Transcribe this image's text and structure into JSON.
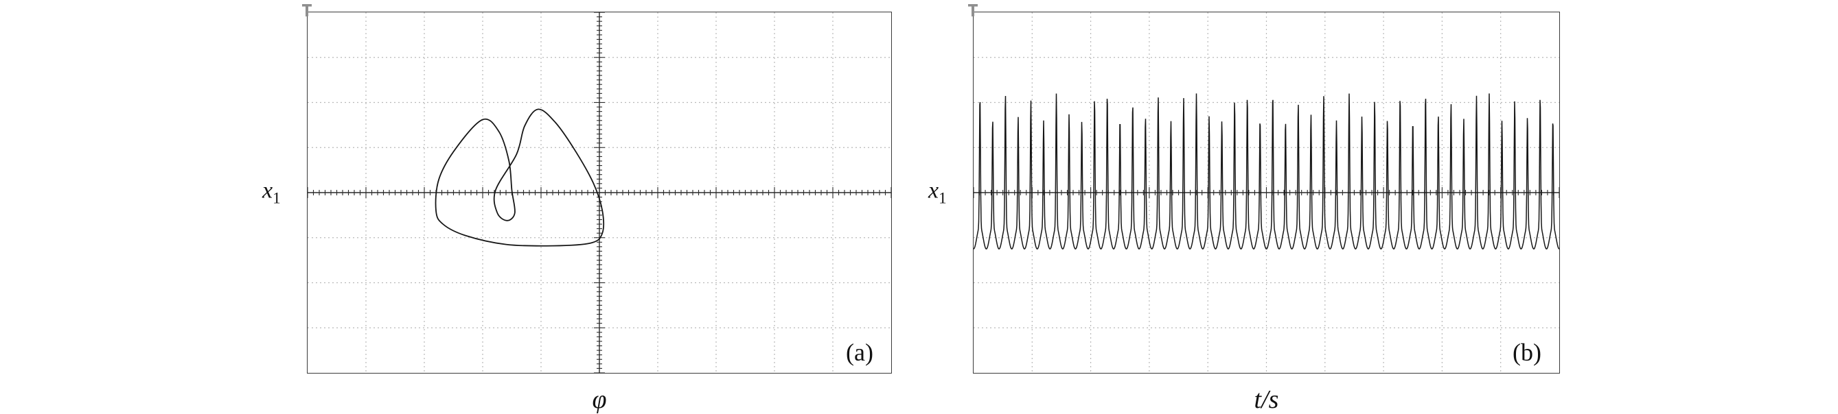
{
  "style": {
    "background": "#ffffff",
    "grid_color": "#b8b8b8",
    "axis_color": "#2b2b2b",
    "curve_color": "#161616",
    "border_color": "#3a3a3a",
    "marker_color": "#8f8f8f"
  },
  "chart_data": [
    {
      "id": "a",
      "type": "line",
      "kind": "phase-portrait",
      "panel_label": "(a)",
      "xlabel": "φ",
      "ylabel_base": "x",
      "ylabel_sub": "1",
      "grid": {
        "cols": 10,
        "rows": 8,
        "minor_per_div": 10
      },
      "axes": {
        "x_axis": true,
        "y_axis": true
      },
      "axis_units": "grid divisions, origin at panel center",
      "trajectory": [
        [
          -2.8,
          -0.4
        ],
        [
          -2.75,
          0.3
        ],
        [
          -2.45,
          1.0
        ],
        [
          -2.0,
          1.62
        ],
        [
          -1.72,
          1.35
        ],
        [
          -1.55,
          0.7
        ],
        [
          -1.5,
          0.05
        ],
        [
          -1.45,
          -0.45
        ],
        [
          -1.58,
          -0.62
        ],
        [
          -1.75,
          -0.45
        ],
        [
          -1.78,
          0.05
        ],
        [
          -1.42,
          0.85
        ],
        [
          -1.28,
          1.48
        ],
        [
          -1.05,
          1.85
        ],
        [
          -0.75,
          1.55
        ],
        [
          -0.4,
          0.9
        ],
        [
          -0.1,
          0.2
        ],
        [
          0.05,
          -0.4
        ],
        [
          0.05,
          -0.9
        ],
        [
          -0.15,
          -1.12
        ],
        [
          -0.8,
          -1.18
        ],
        [
          -1.6,
          -1.15
        ],
        [
          -2.3,
          -0.95
        ],
        [
          -2.68,
          -0.7
        ]
      ]
    },
    {
      "id": "b",
      "type": "line",
      "kind": "time-series",
      "panel_label": "(b)",
      "xlabel": "t/s",
      "ylabel_base": "x",
      "ylabel_sub": "1",
      "grid": {
        "cols": 10,
        "rows": 8,
        "minor_per_div": 10
      },
      "axes": {
        "x_axis": true,
        "y_axis": false
      },
      "waveform": {
        "peaks": [
          2.15,
          1.65,
          2.2,
          1.7,
          2.05,
          1.6,
          2.2,
          1.75,
          1.6,
          2.1,
          2.2,
          1.65,
          2.0,
          1.7,
          2.15,
          1.6,
          2.1,
          2.2,
          1.7,
          1.6,
          2.05,
          2.15,
          1.65,
          2.2,
          1.6,
          2.0,
          1.75,
          2.15,
          1.6,
          2.2,
          1.7,
          2.05,
          1.65,
          2.15,
          1.6,
          2.2,
          1.75,
          2.0,
          1.65,
          2.15,
          2.2,
          1.6,
          2.05,
          1.7,
          2.15,
          1.65
        ],
        "base_low": -1.25,
        "base_high": -0.75,
        "spike_width": 0.055
      }
    }
  ]
}
